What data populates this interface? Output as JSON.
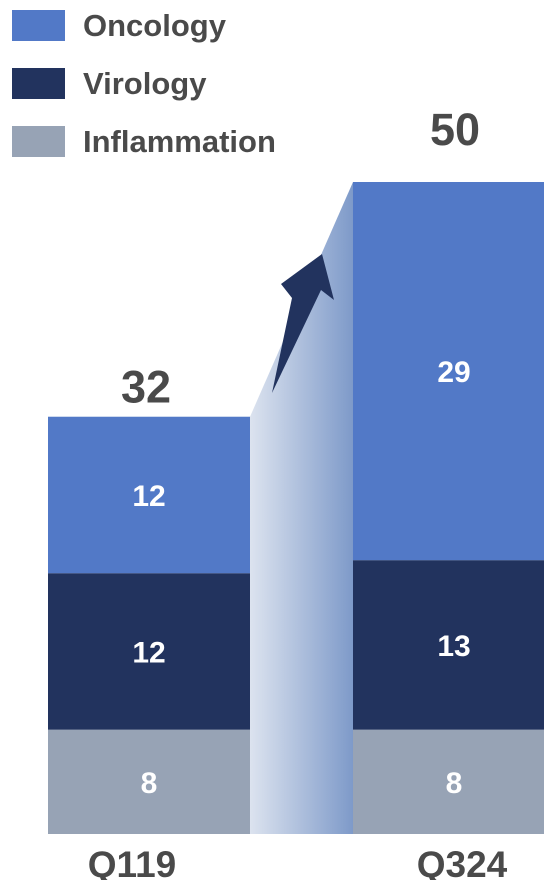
{
  "chart_data": {
    "type": "bar",
    "stacked": true,
    "categories": [
      "Q119",
      "Q324"
    ],
    "series": [
      {
        "name": "Inflammation",
        "values": [
          8,
          8
        ],
        "color": "#97A3B5"
      },
      {
        "name": "Virology",
        "values": [
          12,
          13
        ],
        "color": "#22335E"
      },
      {
        "name": "Oncology",
        "values": [
          12,
          29
        ],
        "color": "#5279C7"
      }
    ],
    "totals": [
      32,
      50
    ],
    "legend_position": "top-left",
    "grid": false,
    "annotation": "growth-arrow",
    "colors": {
      "oncology": "#5279C7",
      "virology": "#22335E",
      "inflammation": "#97A3B5",
      "arrow": "#22335E",
      "text_dark": "#4A4A4A",
      "text_light": "#FFFFFF"
    }
  }
}
